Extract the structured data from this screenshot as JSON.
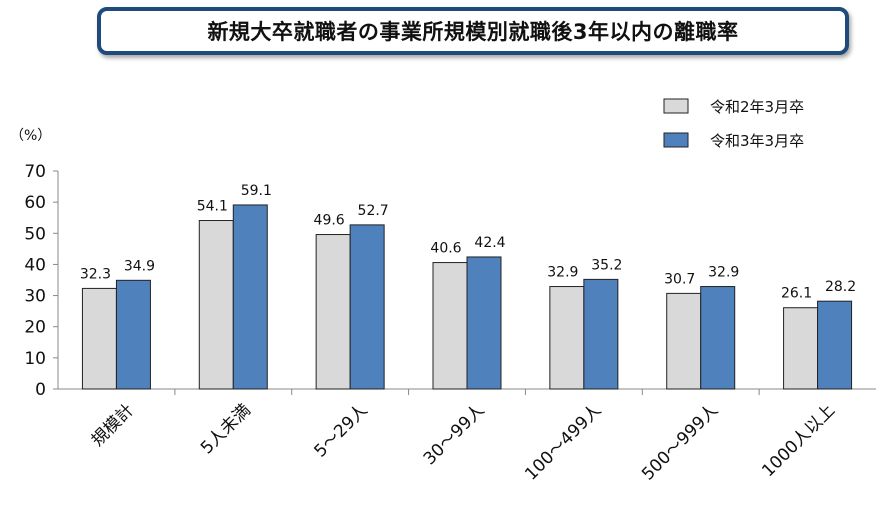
{
  "chart_data": {
    "type": "bar",
    "title": "新規大卒就職者の事業所規模別就職後3年以内の離職率",
    "ylabel": "（%）",
    "xlabel": "",
    "ylim": [
      0,
      70
    ],
    "yticks": [
      0,
      10,
      20,
      30,
      40,
      50,
      60,
      70
    ],
    "categories": [
      "規模計",
      "5人未満",
      "5～29人",
      "30～99人",
      "100～499人",
      "500～999人",
      "1000人以上"
    ],
    "series": [
      {
        "name": "令和2年3月卒",
        "color": "#d9d9d9",
        "values": [
          32.3,
          54.1,
          49.6,
          40.6,
          32.9,
          30.7,
          26.1
        ]
      },
      {
        "name": "令和3年3月卒",
        "color": "#4f81bd",
        "values": [
          34.9,
          59.1,
          52.7,
          42.4,
          35.2,
          32.9,
          28.2
        ]
      }
    ],
    "legend_position": "top-right",
    "grid": false
  }
}
